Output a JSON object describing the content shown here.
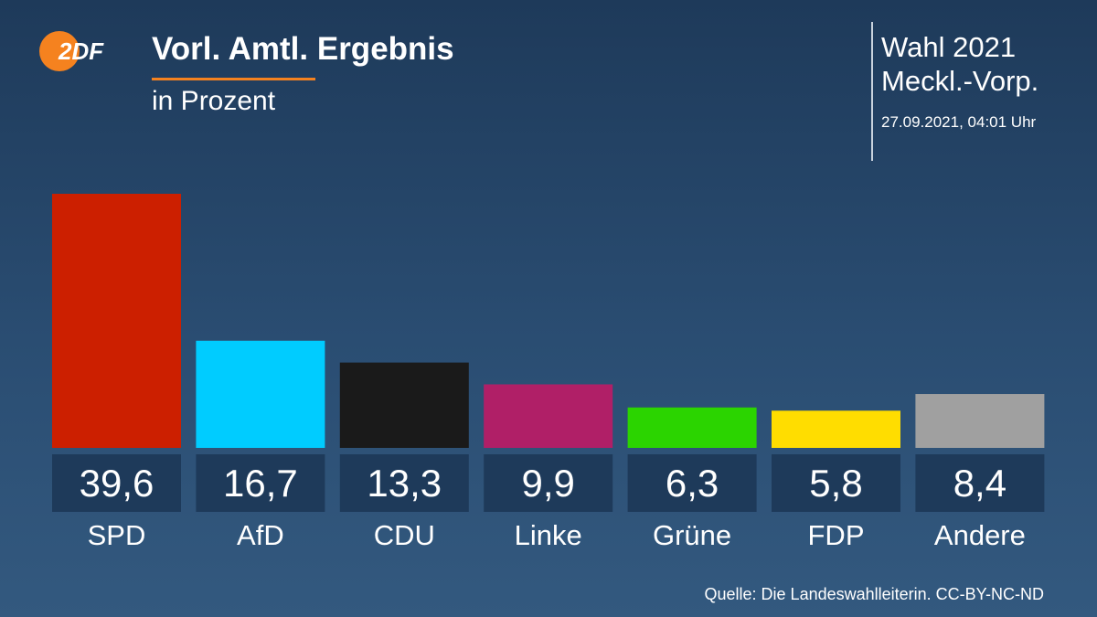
{
  "header": {
    "logo_text": "2DF",
    "title": "Vorl. Amtl. Ergebnis",
    "subtitle": "in Prozent",
    "election_line1": "Wahl 2021",
    "election_line2": "Meckl.-Vorp.",
    "timestamp": "27.09.2021, 04:01 Uhr"
  },
  "footer": {
    "source": "Quelle: Die Landeswahlleiterin. CC-BY-NC-ND"
  },
  "colors": {
    "accent": "#f5821f",
    "label_box": "#1e3a5a"
  },
  "chart_data": {
    "type": "bar",
    "title": "Vorl. Amtl. Ergebnis",
    "subtitle": "in Prozent",
    "categories": [
      "SPD",
      "AfD",
      "CDU",
      "Linke",
      "Grüne",
      "FDP",
      "Andere"
    ],
    "values": [
      39.6,
      16.7,
      13.3,
      9.9,
      6.3,
      5.8,
      8.4
    ],
    "value_labels": [
      "39,6",
      "16,7",
      "13,3",
      "9,9",
      "6,3",
      "5,8",
      "8,4"
    ],
    "colors": [
      "#cc1f00",
      "#00ccff",
      "#1a1a1a",
      "#b01f67",
      "#2bd400",
      "#ffdd00",
      "#a0a0a0"
    ],
    "ylim": [
      0,
      39.6
    ],
    "grid": false,
    "legend": "none"
  }
}
